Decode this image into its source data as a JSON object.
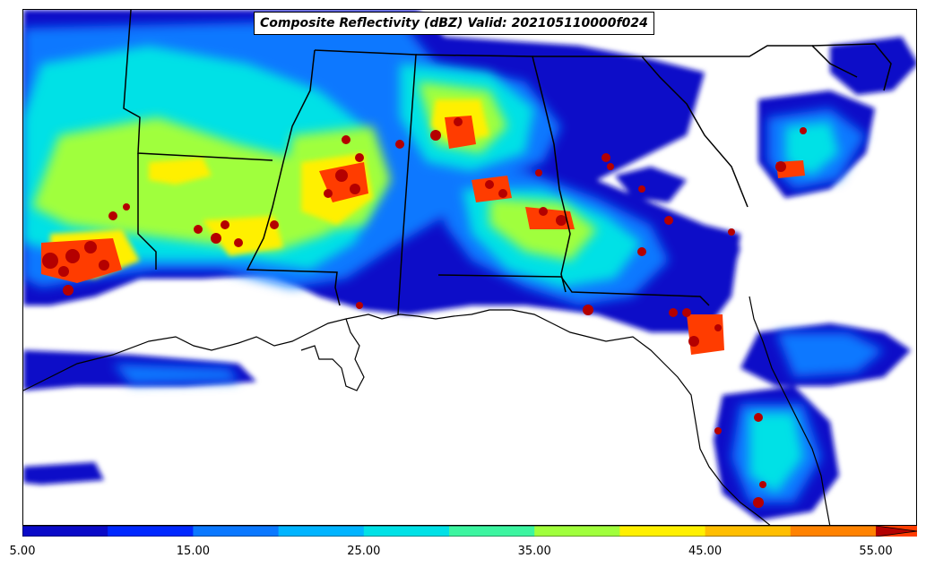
{
  "title": "Composite Reflectivity (dBZ) Valid: 202105110000f024",
  "colorbar": {
    "colors": [
      "#0a0ac8",
      "#0028ff",
      "#0a78ff",
      "#00b4ff",
      "#00e1e6",
      "#3cf5a0",
      "#a0ff3c",
      "#fff000",
      "#ffbe00",
      "#ff8200",
      "#ff3c00",
      "#b40000"
    ],
    "tick_labels": [
      "5.00",
      "15.00",
      "25.00",
      "35.00",
      "45.00",
      "55.00"
    ],
    "min": 5,
    "max": 55,
    "step": 5,
    "extend": "max"
  }
}
